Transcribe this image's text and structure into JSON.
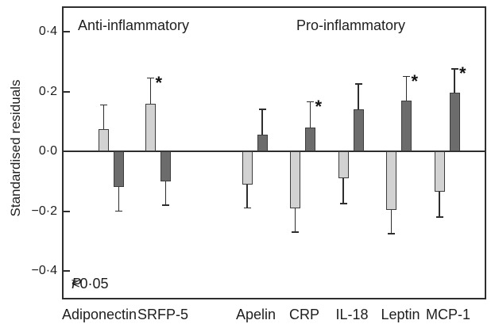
{
  "figure": {
    "y_axis_label": "Standardised residuals",
    "anti_section_label": "Anti-inflammatory",
    "pro_section_label": "Pro-inflammatory",
    "significance_note": {
      "symbol": "*",
      "p_symbol": "P",
      "comparison": "<0·05",
      "full_text": "* P<0·05"
    }
  },
  "chart_data": {
    "type": "bar",
    "title": "",
    "xlabel": "",
    "ylabel": "Standardised residuals",
    "ylim": [
      -0.49,
      0.49
    ],
    "grid": false,
    "legend": "none",
    "error_bars": "one-sided, extending away from zero, with caps",
    "significance_symbol": "*",
    "significance_note": "* P<0·05",
    "yticks": [
      {
        "value": 0.4,
        "label": "0·4"
      },
      {
        "value": 0.2,
        "label": "0·2"
      },
      {
        "value": 0.0,
        "label": "0·0"
      },
      {
        "value": -0.2,
        "label": "−0·2"
      },
      {
        "value": -0.4,
        "label": "−0·4"
      }
    ],
    "categories": [
      "Adiponectin",
      "SRFP-5",
      "Apelin",
      "CRP",
      "IL-18",
      "Leptin",
      "MCP-1"
    ],
    "category_groups": [
      {
        "label": "Anti-inflammatory",
        "categories": [
          "Adiponectin",
          "SRFP-5"
        ]
      },
      {
        "label": "Pro-inflammatory",
        "categories": [
          "Apelin",
          "CRP",
          "IL-18",
          "Leptin",
          "MCP-1"
        ]
      }
    ],
    "series": [
      {
        "name": "light-grey-bars",
        "color": "#d2d2d2",
        "values": [
          0.075,
          0.16,
          -0.11,
          -0.19,
          -0.09,
          -0.195,
          -0.135
        ],
        "errors": [
          0.08,
          0.085,
          0.08,
          0.08,
          0.085,
          0.08,
          0.085
        ],
        "significant": [
          false,
          true,
          false,
          false,
          false,
          false,
          false
        ]
      },
      {
        "name": "dark-grey-bars",
        "color": "#6c6c6c",
        "values": [
          -0.12,
          -0.1,
          0.055,
          0.08,
          0.14,
          0.17,
          0.195
        ],
        "errors": [
          0.08,
          0.08,
          0.085,
          0.085,
          0.085,
          0.08,
          0.08
        ],
        "significant": [
          false,
          false,
          false,
          true,
          false,
          true,
          true
        ]
      }
    ]
  }
}
